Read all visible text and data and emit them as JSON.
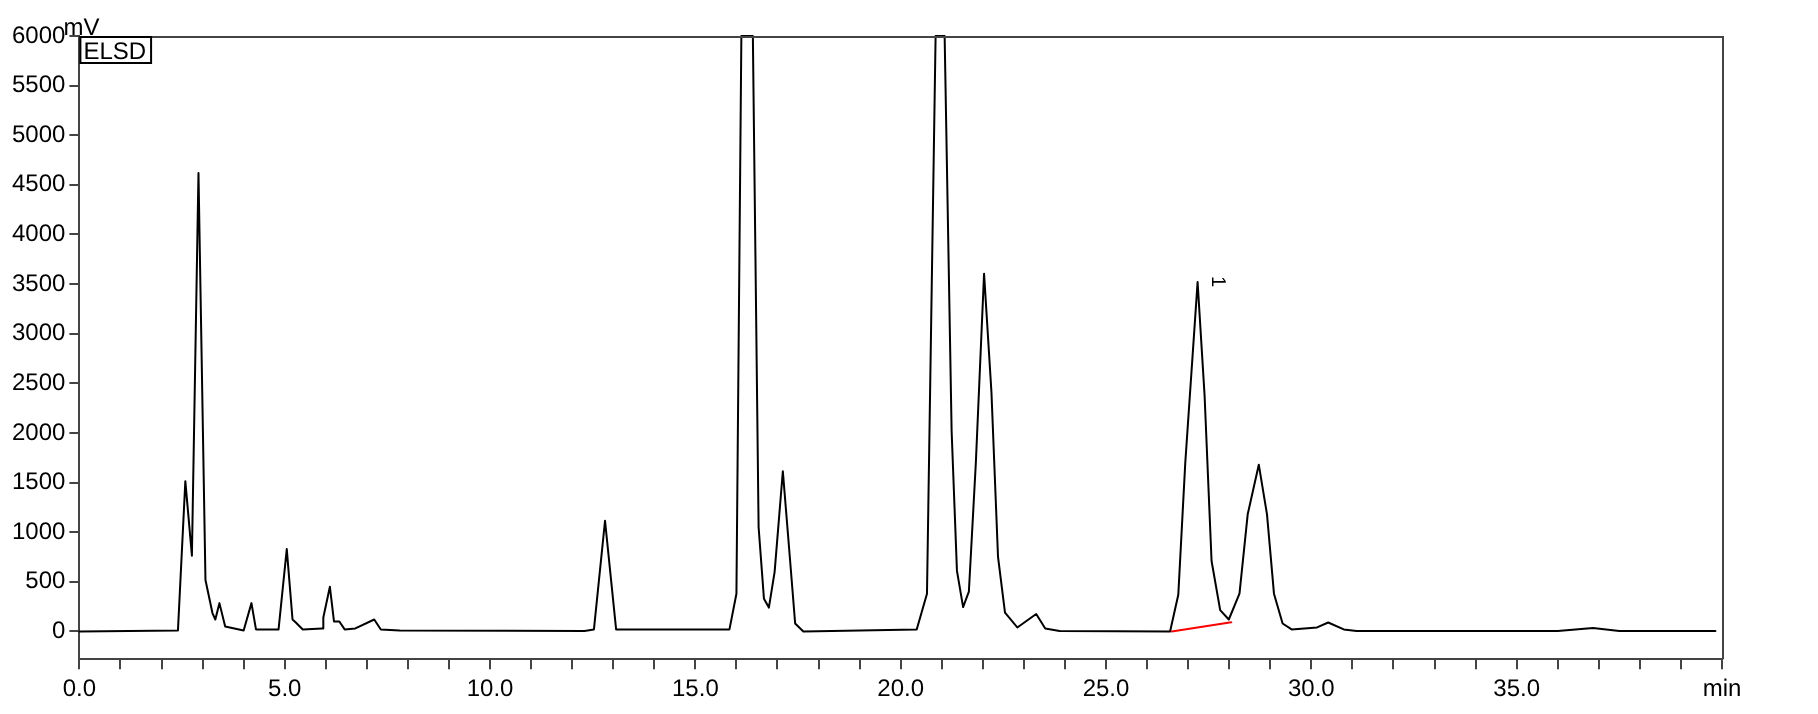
{
  "chart_data": {
    "type": "line",
    "ylabel": "mV",
    "annotations": [
      "ELSD",
      {
        "text": "1",
        "x": 27.23,
        "y": 3520
      }
    ],
    "xlim": [
      0,
      40
    ],
    "ylim": [
      -280,
      6000
    ],
    "xticks": [
      {
        "value": 0,
        "label": "0.0"
      },
      {
        "value": 1,
        "label": null
      },
      {
        "value": 2,
        "label": null
      },
      {
        "value": 3,
        "label": null
      },
      {
        "value": 4,
        "label": null
      },
      {
        "value": 5,
        "label": "5.0"
      },
      {
        "value": 6,
        "label": null
      },
      {
        "value": 7,
        "label": null
      },
      {
        "value": 8,
        "label": null
      },
      {
        "value": 9,
        "label": null
      },
      {
        "value": 10,
        "label": "10.0"
      },
      {
        "value": 11,
        "label": null
      },
      {
        "value": 12,
        "label": null
      },
      {
        "value": 13,
        "label": null
      },
      {
        "value": 14,
        "label": null
      },
      {
        "value": 15,
        "label": "15.0"
      },
      {
        "value": 16,
        "label": null
      },
      {
        "value": 17,
        "label": null
      },
      {
        "value": 18,
        "label": null
      },
      {
        "value": 19,
        "label": null
      },
      {
        "value": 20,
        "label": "20.0"
      },
      {
        "value": 21,
        "label": null
      },
      {
        "value": 22,
        "label": null
      },
      {
        "value": 23,
        "label": null
      },
      {
        "value": 24,
        "label": null
      },
      {
        "value": 25,
        "label": "25.0"
      },
      {
        "value": 26,
        "label": null
      },
      {
        "value": 27,
        "label": null
      },
      {
        "value": 28,
        "label": null
      },
      {
        "value": 29,
        "label": null
      },
      {
        "value": 30,
        "label": "30.0"
      },
      {
        "value": 31,
        "label": null
      },
      {
        "value": 32,
        "label": null
      },
      {
        "value": 33,
        "label": null
      },
      {
        "value": 34,
        "label": null
      },
      {
        "value": 35,
        "label": "35.0"
      },
      {
        "value": 36,
        "label": null
      },
      {
        "value": 37,
        "label": null
      },
      {
        "value": 38,
        "label": null
      },
      {
        "value": 39,
        "label": null
      },
      {
        "value": 40,
        "label": "min"
      }
    ],
    "yticks": [
      0,
      500,
      1000,
      1500,
      2000,
      2500,
      3000,
      3500,
      4000,
      4500,
      5000,
      5500,
      6000
    ],
    "grid": false,
    "legend": false,
    "marker": "none",
    "line_style": "solid",
    "series": [
      {
        "color": "#000000",
        "x": [
          0,
          2.4,
          2.58,
          2.74,
          2.9,
          3.07,
          3.24,
          3.31,
          3.41,
          3.55,
          4.0,
          4.19,
          4.3,
          4.85,
          5.05,
          5.19,
          5.27,
          5.44,
          5.91,
          5.94,
          6.1,
          6.2,
          6.33,
          6.46,
          6.72,
          7.18,
          7.34,
          7.8,
          12.3,
          12.53,
          12.8,
          13.07,
          15.83,
          16.0,
          16.12,
          16.4,
          16.54,
          16.67,
          16.79,
          16.93,
          17.13,
          17.3,
          17.43,
          17.63,
          20.39,
          20.64,
          20.85,
          21.07,
          21.24,
          21.37,
          21.52,
          21.66,
          21.83,
          22.03,
          22.21,
          22.37,
          22.54,
          22.84,
          23.3,
          23.52,
          23.87,
          26.56,
          26.76,
          26.93,
          27.23,
          27.4,
          27.57,
          27.78,
          27.99,
          28.25,
          28.45,
          28.72,
          28.92,
          29.09,
          29.3,
          29.52,
          30.14,
          30.41,
          30.79,
          31.1,
          36.0,
          36.86,
          37.5,
          39.84
        ],
        "values": [
          0,
          10,
          1514,
          763,
          4620,
          518,
          185,
          120,
          285,
          50,
          10,
          285,
          20,
          20,
          830,
          120,
          90,
          20,
          30,
          140,
          450,
          100,
          100,
          20,
          30,
          120,
          20,
          10,
          5,
          20,
          1115,
          20,
          20,
          380,
          6000,
          6000,
          1050,
          330,
          240,
          600,
          1614,
          750,
          80,
          0,
          20,
          380,
          6000,
          6000,
          2020,
          610,
          245,
          400,
          1700,
          3605,
          2410,
          750,
          190,
          40,
          175,
          30,
          5,
          0,
          370,
          1700,
          3520,
          2380,
          710,
          215,
          120,
          380,
          1180,
          1680,
          1180,
          380,
          80,
          20,
          40,
          90,
          20,
          5,
          5,
          35,
          5,
          5
        ]
      },
      {
        "color": "#ff0000",
        "x": [
          26.6,
          28.05
        ],
        "values": [
          0,
          92
        ]
      }
    ]
  }
}
